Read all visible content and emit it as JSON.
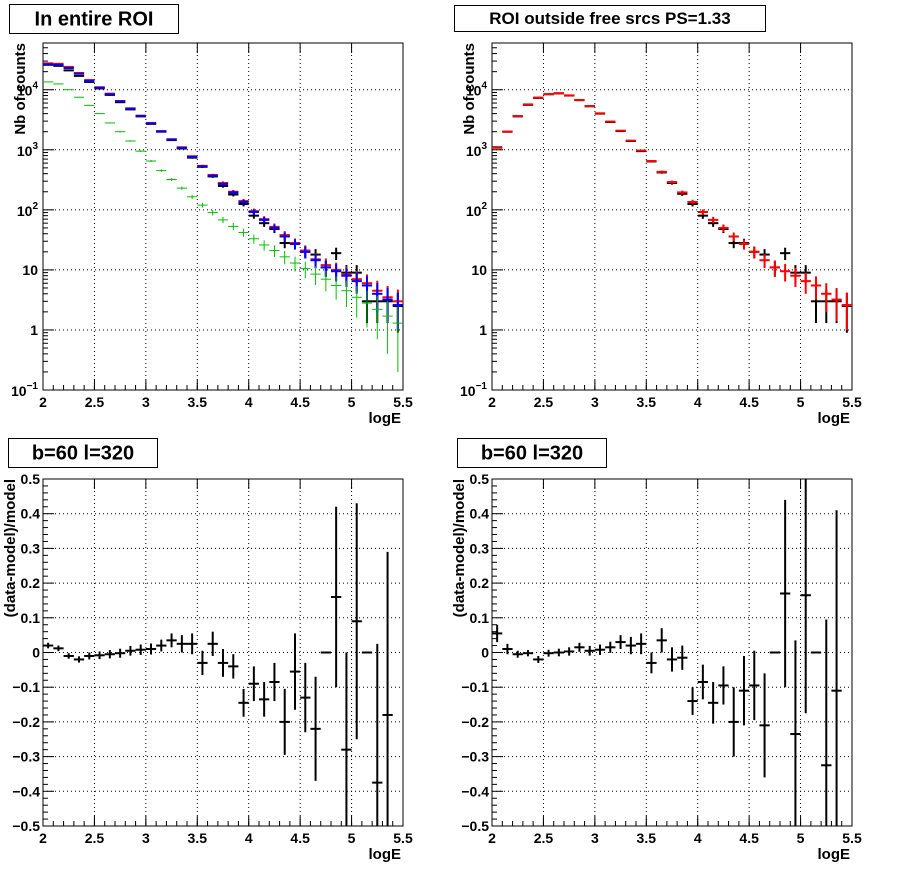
{
  "chart_data": [
    {
      "type": "scatter",
      "title": "In entire ROI",
      "xlabel": "logE",
      "ylabel": "Nb of counts",
      "xlim": [
        2,
        5.5
      ],
      "ylim": [
        0.1,
        60000
      ],
      "yscale": "log",
      "grid": true,
      "xticks": [
        "2",
        "2.5",
        "3",
        "3.5",
        "4",
        "4.5",
        "5",
        "5.5"
      ],
      "yticks": [
        {
          "value": 0.1,
          "base": "10",
          "exp": "−1"
        },
        {
          "value": 1,
          "label": "1"
        },
        {
          "value": 10,
          "label": "10"
        },
        {
          "value": 100,
          "base": "10",
          "exp": "2"
        },
        {
          "value": 1000,
          "base": "10",
          "exp": "3"
        },
        {
          "value": 10000,
          "base": "10",
          "exp": "4"
        }
      ],
      "series": [
        {
          "color": "#000000",
          "x": [
            2.05,
            2.15,
            2.25,
            2.35,
            2.45,
            2.55,
            2.65,
            2.75,
            2.85,
            2.95,
            3.05,
            3.15,
            3.25,
            3.35,
            3.45,
            3.55,
            3.65,
            3.75,
            3.85,
            3.95,
            4.05,
            4.15,
            4.25,
            4.35,
            4.45,
            4.55,
            4.65,
            4.75,
            4.85,
            4.95,
            5.05,
            5.15,
            5.25,
            5.35,
            5.45
          ],
          "y": [
            26000,
            25000,
            21000,
            17000,
            13500,
            10500,
            8200,
            6200,
            4700,
            3600,
            2700,
            2000,
            1450,
            1050,
            740,
            520,
            360,
            250,
            180,
            125,
            80,
            60,
            48,
            28,
            28,
            20,
            18,
            11,
            19,
            9,
            9,
            3,
            3,
            3,
            2.5
          ],
          "yerr": [
            160,
            158,
            145,
            130,
            116,
            102,
            91,
            79,
            69,
            60,
            52,
            45,
            38,
            32,
            27,
            23,
            19,
            16,
            13,
            11,
            9,
            8,
            7,
            5,
            5,
            4.5,
            4.2,
            3.3,
            4.4,
            3,
            3,
            1.7,
            1.7,
            1.7,
            1.6
          ]
        },
        {
          "color": "#ff0000",
          "x": [
            2.05,
            2.15,
            2.25,
            2.35,
            2.45,
            2.55,
            2.65,
            2.75,
            2.85,
            2.95,
            3.05,
            3.15,
            3.25,
            3.35,
            3.45,
            3.55,
            3.65,
            3.75,
            3.85,
            3.95,
            4.05,
            4.15,
            4.25,
            4.35,
            4.45,
            4.55,
            4.65,
            4.75,
            4.85,
            4.95,
            5.05,
            5.15,
            5.25,
            5.35,
            5.45
          ],
          "y": [
            27500,
            27000,
            24000,
            19000,
            14500,
            11000,
            8600,
            6500,
            4900,
            3700,
            2800,
            2050,
            1500,
            1100,
            780,
            540,
            380,
            280,
            200,
            140,
            95,
            70,
            52,
            38,
            28,
            21,
            15,
            12,
            10,
            8.5,
            7,
            6,
            4.5,
            3.5,
            3
          ],
          "yerr": [
            165,
            164,
            155,
            138,
            120,
            105,
            93,
            81,
            70,
            61,
            53,
            45,
            39,
            33,
            28,
            23,
            19,
            17,
            14,
            12,
            10,
            8.4,
            7.2,
            6.2,
            5.3,
            4.6,
            3.9,
            3.5,
            3.2,
            2.9,
            2.6,
            2.4,
            2.1,
            1.9,
            1.7
          ]
        },
        {
          "color": "#0000ff",
          "x": [
            2.05,
            2.15,
            2.25,
            2.35,
            2.45,
            2.55,
            2.65,
            2.75,
            2.85,
            2.95,
            3.05,
            3.15,
            3.25,
            3.35,
            3.45,
            3.55,
            3.65,
            3.75,
            3.85,
            3.95,
            4.05,
            4.15,
            4.25,
            4.35,
            4.45,
            4.55,
            4.65,
            4.75,
            4.85,
            4.95,
            5.05,
            5.15,
            5.25,
            5.35,
            5.45
          ],
          "y": [
            26500,
            26000,
            23000,
            18500,
            14000,
            10800,
            8400,
            6400,
            4850,
            3650,
            2750,
            2020,
            1480,
            1080,
            760,
            530,
            370,
            270,
            195,
            135,
            92,
            68,
            50,
            36,
            27,
            20,
            14.5,
            11,
            9.5,
            8,
            6.5,
            5.5,
            4,
            3.2,
            2.6
          ],
          "yerr": [
            163,
            161,
            152,
            136,
            118,
            104,
            92,
            80,
            70,
            60,
            52,
            45,
            38,
            33,
            28,
            23,
            19,
            16,
            14,
            12,
            9.6,
            8.2,
            7.1,
            6,
            5.2,
            4.5,
            3.8,
            3.3,
            3.1,
            2.8,
            2.5,
            2.3,
            2,
            1.8,
            1.6
          ]
        },
        {
          "color": "#00c000",
          "x": [
            2.05,
            2.15,
            2.25,
            2.35,
            2.45,
            2.55,
            2.65,
            2.75,
            2.85,
            2.95,
            3.05,
            3.15,
            3.25,
            3.35,
            3.45,
            3.55,
            3.65,
            3.75,
            3.85,
            3.95,
            4.05,
            4.15,
            4.25,
            4.35,
            4.45,
            4.55,
            4.65,
            4.75,
            4.85,
            4.95,
            5.05,
            5.15,
            5.25,
            5.35,
            5.45
          ],
          "y": [
            13500,
            12500,
            10000,
            7500,
            5500,
            4000,
            2800,
            2000,
            1400,
            950,
            650,
            450,
            320,
            230,
            165,
            120,
            90,
            68,
            53,
            42,
            33,
            26,
            21,
            16.5,
            13,
            10.5,
            8.5,
            7,
            5.5,
            4.5,
            3.5,
            2.8,
            2.2,
            1.7,
            1.3
          ],
          "yerr": [
            116,
            112,
            100,
            87,
            74,
            63,
            53,
            45,
            37,
            31,
            25,
            21,
            18,
            15,
            13,
            11,
            9.5,
            8.2,
            7.3,
            6.5,
            5.7,
            5.1,
            4.6,
            4.1,
            3.6,
            3.2,
            2.9,
            2.6,
            2.3,
            2.1,
            1.9,
            1.7,
            1.5,
            1.3,
            1.1
          ]
        }
      ]
    },
    {
      "type": "scatter",
      "title": "ROI outside free srcs PS=1.33",
      "xlabel": "logE",
      "ylabel": "Nb of counts",
      "xlim": [
        2,
        5.5
      ],
      "ylim": [
        0.1,
        60000
      ],
      "yscale": "log",
      "grid": true,
      "xticks": [
        "2",
        "2.5",
        "3",
        "3.5",
        "4",
        "4.5",
        "5",
        "5.5"
      ],
      "yticks": [
        {
          "value": 0.1,
          "base": "10",
          "exp": "−1"
        },
        {
          "value": 1,
          "label": "1"
        },
        {
          "value": 10,
          "label": "10"
        },
        {
          "value": 100,
          "base": "10",
          "exp": "2"
        },
        {
          "value": 1000,
          "base": "10",
          "exp": "3"
        },
        {
          "value": 10000,
          "base": "10",
          "exp": "4"
        }
      ],
      "series": [
        {
          "color": "#000000",
          "x": [
            2.05,
            2.15,
            2.25,
            2.35,
            2.45,
            2.55,
            2.65,
            2.75,
            2.85,
            2.95,
            3.05,
            3.15,
            3.25,
            3.35,
            3.45,
            3.55,
            3.65,
            3.75,
            3.85,
            3.95,
            4.05,
            4.15,
            4.25,
            4.35,
            4.45,
            4.55,
            4.65,
            4.75,
            4.85,
            4.95,
            5.05,
            5.15,
            5.25,
            5.35,
            5.45
          ],
          "y": [
            1100,
            2000,
            3600,
            5600,
            7300,
            8400,
            8700,
            8000,
            6700,
            5300,
            4000,
            2900,
            2050,
            1400,
            950,
            640,
            420,
            280,
            185,
            125,
            80,
            60,
            48,
            28,
            28,
            20,
            18,
            11,
            19,
            9,
            9,
            3,
            3,
            3,
            2.5
          ],
          "yerr": [
            33,
            45,
            60,
            75,
            85,
            92,
            93,
            89,
            82,
            73,
            63,
            54,
            45,
            37,
            31,
            25,
            20,
            17,
            14,
            11,
            9,
            8,
            7,
            5,
            5,
            4.5,
            4.2,
            3.3,
            4.4,
            3,
            3,
            1.7,
            1.7,
            1.7,
            1.6
          ]
        },
        {
          "color": "#ff0000",
          "x": [
            2.05,
            2.15,
            2.25,
            2.35,
            2.45,
            2.55,
            2.65,
            2.75,
            2.85,
            2.95,
            3.05,
            3.15,
            3.25,
            3.35,
            3.45,
            3.55,
            3.65,
            3.75,
            3.85,
            3.95,
            4.05,
            4.15,
            4.25,
            4.35,
            4.45,
            4.55,
            4.65,
            4.75,
            4.85,
            4.95,
            5.05,
            5.15,
            5.25,
            5.35,
            5.45
          ],
          "y": [
            1080,
            2000,
            3650,
            5700,
            7400,
            8450,
            8750,
            8050,
            6750,
            5350,
            4050,
            2950,
            2080,
            1420,
            970,
            650,
            430,
            290,
            195,
            135,
            92,
            68,
            50,
            36,
            27,
            20,
            14.5,
            11,
            9.5,
            8,
            6.5,
            5.5,
            4,
            3.2,
            2.6
          ],
          "yerr": [
            33,
            45,
            60,
            75,
            86,
            92,
            94,
            90,
            82,
            73,
            64,
            54,
            46,
            38,
            31,
            25,
            21,
            17,
            14,
            12,
            9.6,
            8.2,
            7.1,
            6,
            5.2,
            4.5,
            3.8,
            3.3,
            3.1,
            2.8,
            2.5,
            2.3,
            2,
            1.8,
            1.6
          ]
        }
      ]
    },
    {
      "type": "scatter",
      "title": "b=60 l=320",
      "xlabel": "logE",
      "ylabel": "(data-model)/model",
      "xlim": [
        2,
        5.5
      ],
      "ylim": [
        -0.5,
        0.5
      ],
      "grid": true,
      "xticks": [
        "2",
        "2.5",
        "3",
        "3.5",
        "4",
        "4.5",
        "5",
        "5.5"
      ],
      "yticks": [
        "−0.5",
        "−0.4",
        "−0.3",
        "−0.2",
        "−0.1",
        "0",
        "0.1",
        "0.2",
        "0.3",
        "0.4",
        "0.5"
      ],
      "series": [
        {
          "color": "#000000",
          "x": [
            2.05,
            2.15,
            2.25,
            2.35,
            2.45,
            2.55,
            2.65,
            2.75,
            2.85,
            2.95,
            3.05,
            3.15,
            3.25,
            3.35,
            3.45,
            3.55,
            3.65,
            3.75,
            3.85,
            3.95,
            4.05,
            4.15,
            4.25,
            4.35,
            4.45,
            4.55,
            4.65,
            4.75,
            4.85,
            4.95,
            5.05,
            5.15,
            5.25,
            5.35
          ],
          "y": [
            0.02,
            0.012,
            -0.01,
            -0.02,
            -0.01,
            -0.008,
            -0.005,
            -0.002,
            0.005,
            0.008,
            0.01,
            0.02,
            0.035,
            0.025,
            0.025,
            -0.03,
            0.025,
            -0.03,
            -0.04,
            -0.145,
            -0.09,
            -0.135,
            -0.085,
            -0.2,
            -0.055,
            -0.13,
            -0.22,
            0.0,
            0.16,
            -0.28,
            0.09,
            0.0,
            -0.375,
            -0.18
          ],
          "yerr": [
            0.008,
            0.008,
            0.008,
            0.009,
            0.01,
            0.011,
            0.012,
            0.013,
            0.014,
            0.015,
            0.016,
            0.017,
            0.02,
            0.025,
            0.03,
            0.035,
            0.035,
            0.04,
            0.035,
            0.04,
            0.05,
            0.05,
            0.055,
            0.095,
            0.11,
            0.1,
            0.15,
            0.0,
            0.26,
            0.28,
            0.34,
            0.0,
            0.4,
            0.47
          ]
        }
      ]
    },
    {
      "type": "scatter",
      "title": "b=60 l=320",
      "xlabel": "logE",
      "ylabel": "(data-model)/model",
      "xlim": [
        2,
        5.5
      ],
      "ylim": [
        -0.5,
        0.5
      ],
      "grid": true,
      "xticks": [
        "2",
        "2.5",
        "3",
        "3.5",
        "4",
        "4.5",
        "5",
        "5.5"
      ],
      "yticks": [
        "−0.5",
        "−0.4",
        "−0.3",
        "−0.2",
        "−0.1",
        "0",
        "0.1",
        "0.2",
        "0.3",
        "0.4",
        "0.5"
      ],
      "series": [
        {
          "color": "#000000",
          "x": [
            2.05,
            2.15,
            2.25,
            2.35,
            2.45,
            2.55,
            2.65,
            2.75,
            2.85,
            2.95,
            3.05,
            3.15,
            3.25,
            3.35,
            3.45,
            3.55,
            3.65,
            3.75,
            3.85,
            3.95,
            4.05,
            4.15,
            4.25,
            4.35,
            4.45,
            4.55,
            4.65,
            4.75,
            4.85,
            4.95,
            5.05,
            5.15,
            5.25,
            5.35
          ],
          "y": [
            0.055,
            0.01,
            -0.005,
            -0.002,
            -0.02,
            -0.002,
            0.0,
            0.003,
            0.015,
            0.005,
            0.008,
            0.015,
            0.03,
            0.02,
            0.025,
            -0.03,
            0.035,
            -0.02,
            -0.015,
            -0.14,
            -0.085,
            -0.145,
            -0.095,
            -0.2,
            -0.11,
            -0.095,
            -0.21,
            0.0,
            0.17,
            -0.235,
            0.165,
            0.0,
            -0.325,
            -0.11
          ],
          "yerr": [
            0.025,
            0.015,
            0.01,
            0.009,
            0.01,
            0.01,
            0.011,
            0.012,
            0.013,
            0.014,
            0.015,
            0.016,
            0.02,
            0.025,
            0.03,
            0.03,
            0.035,
            0.035,
            0.035,
            0.04,
            0.05,
            0.06,
            0.055,
            0.1,
            0.1,
            0.1,
            0.15,
            0.0,
            0.27,
            0.27,
            0.34,
            0.0,
            0.42,
            0.52
          ]
        }
      ]
    }
  ]
}
